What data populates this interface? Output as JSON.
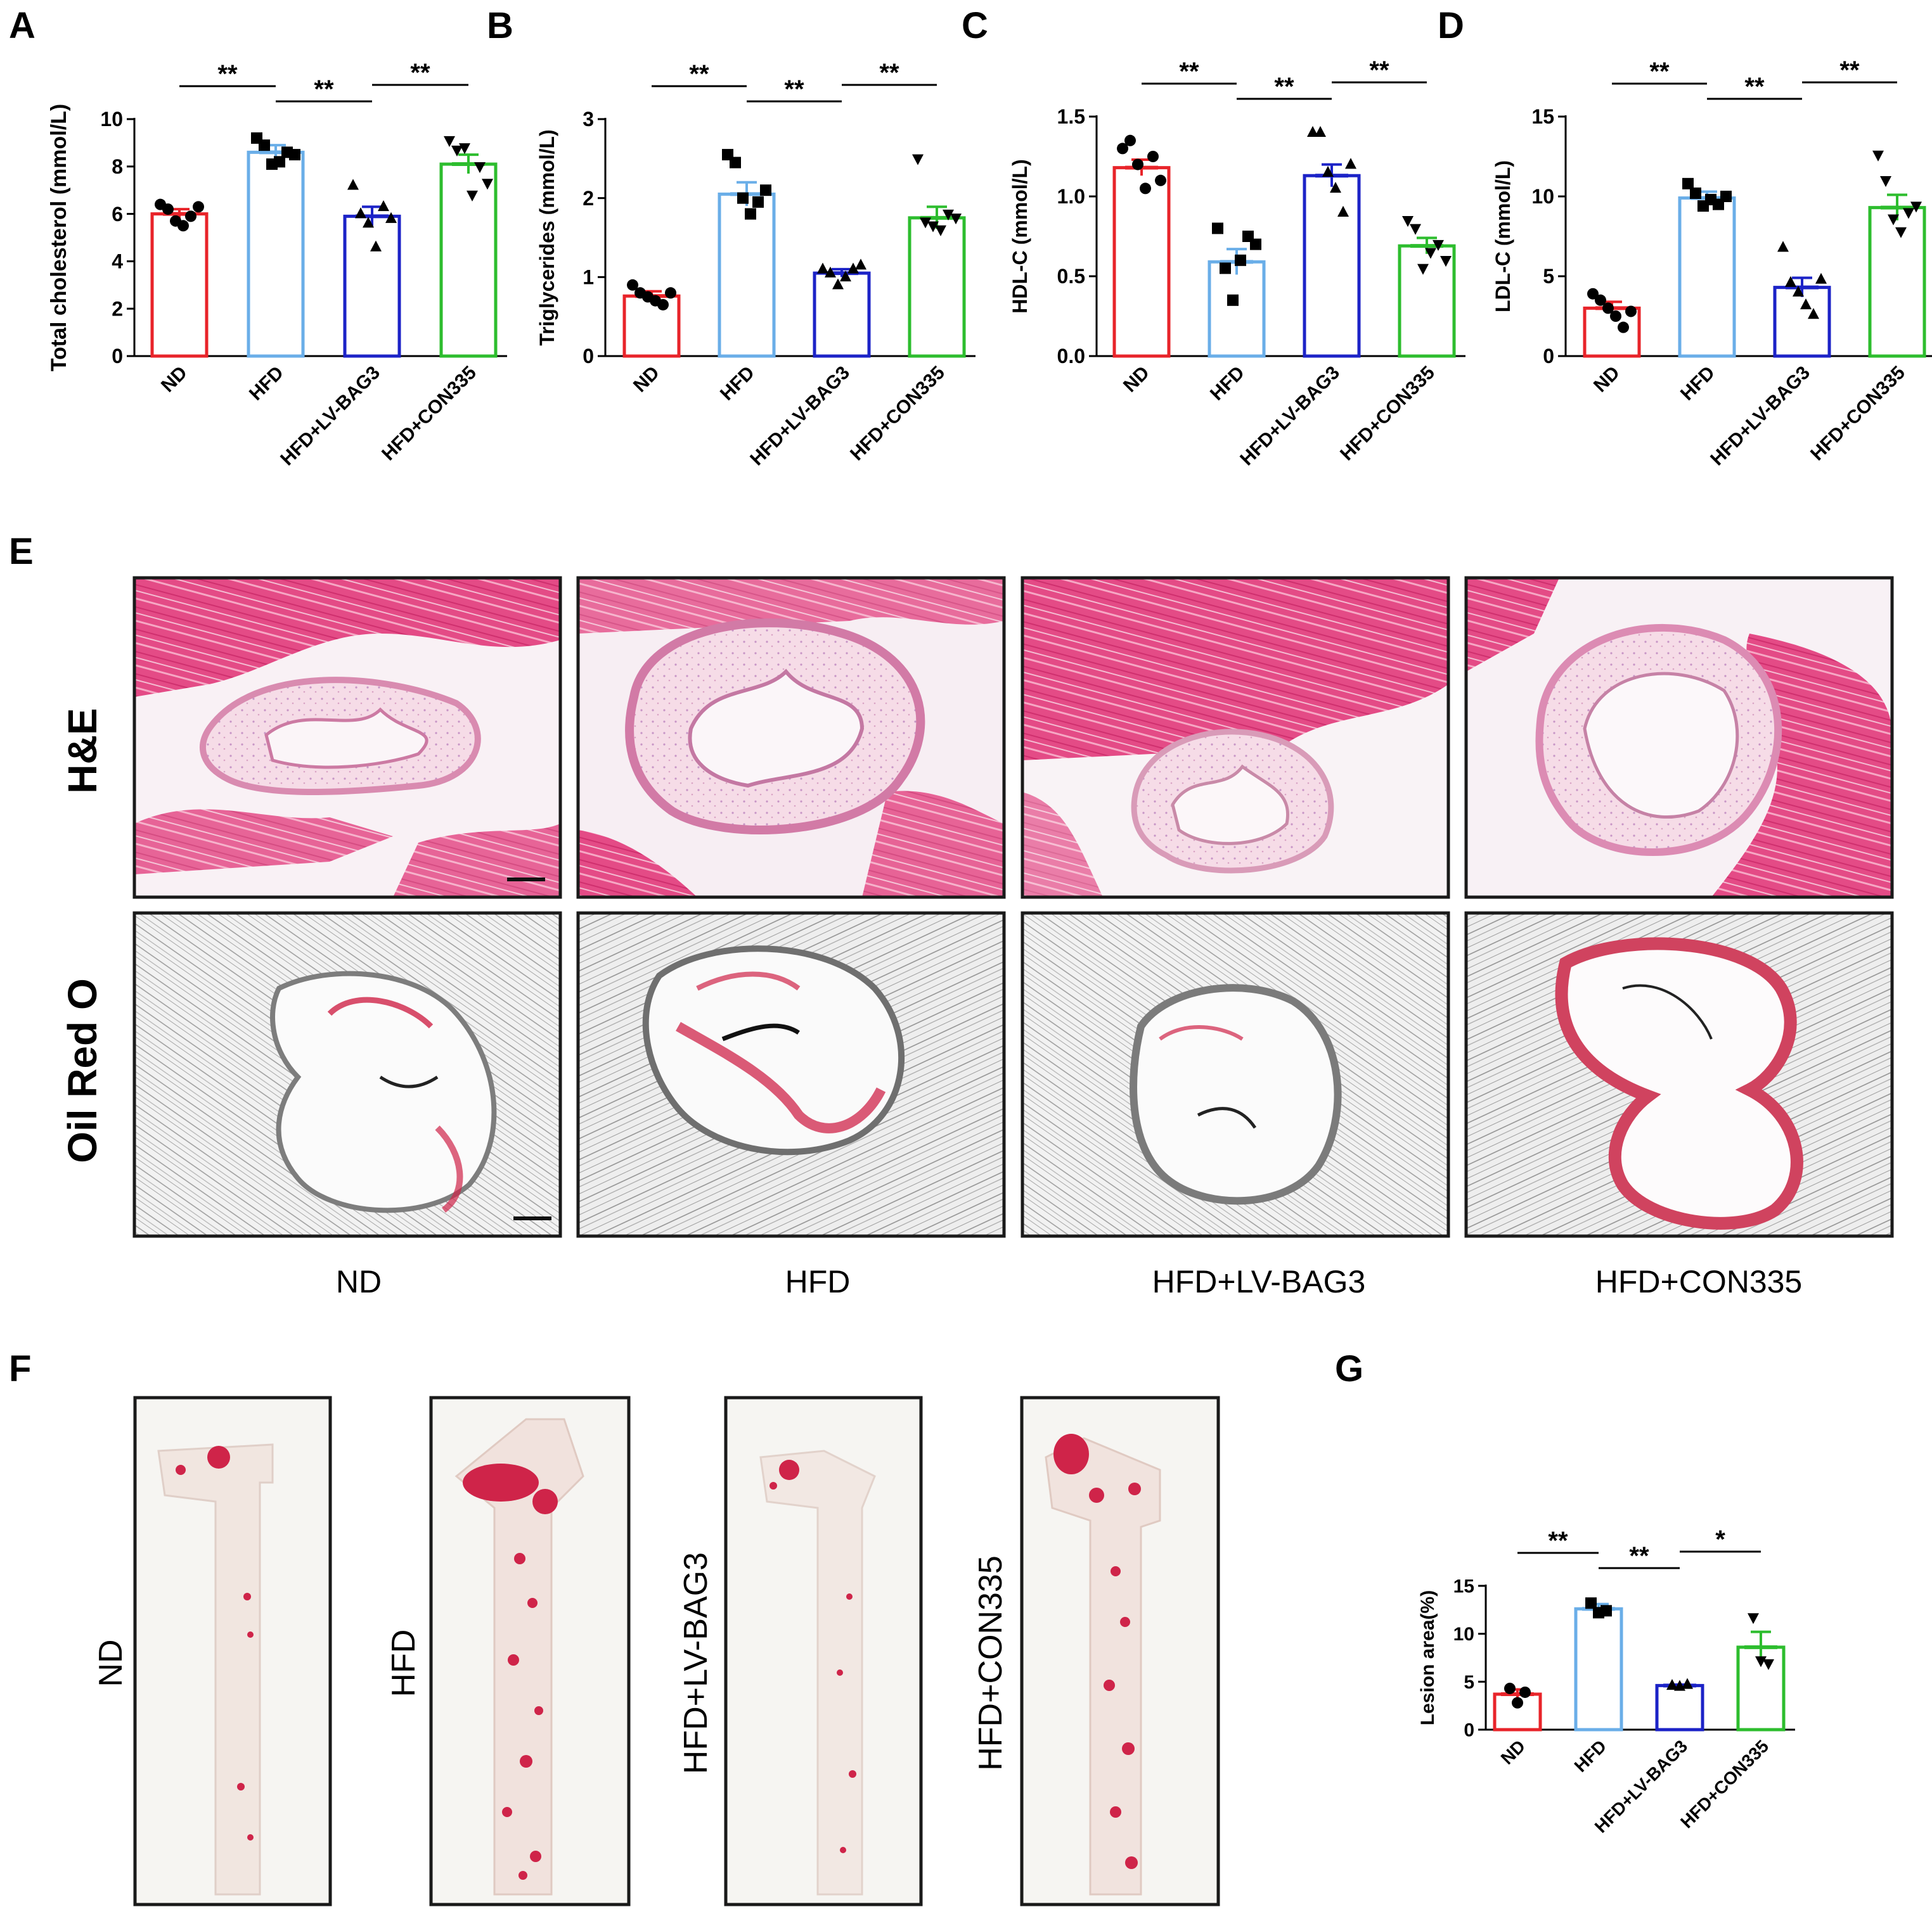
{
  "panels": {
    "A": "A",
    "B": "B",
    "C": "C",
    "D": "D",
    "E": "E",
    "F": "F",
    "G": "G"
  },
  "colors": {
    "ND": "#e8242a",
    "HFD": "#6aaee8",
    "HFD+LV-BAG3": "#1c23c7",
    "HFD+CON335": "#2dbd2e",
    "he_pink": "#e2558b",
    "oil_red": "#cf2449"
  },
  "chart_data": [
    {
      "id": "A",
      "type": "bar",
      "ylabel": "Total cholesterol (mmol/L)",
      "categories": [
        "ND",
        "HFD",
        "HFD+LV-BAG3",
        "HFD+CON335"
      ],
      "values": [
        6.0,
        8.6,
        5.9,
        8.1
      ],
      "errors": [
        0.2,
        0.3,
        0.4,
        0.4
      ],
      "markers": [
        "circle",
        "square",
        "triangle",
        "triangle-down"
      ],
      "points": [
        [
          6.4,
          6.2,
          5.7,
          5.5,
          5.9,
          6.3
        ],
        [
          9.2,
          8.9,
          8.1,
          8.2,
          8.6,
          8.5
        ],
        [
          7.2,
          6.0,
          5.6,
          4.6,
          6.3,
          5.8
        ],
        [
          9.1,
          8.7,
          8.8,
          6.8,
          8.0,
          7.3
        ]
      ],
      "ylim": [
        0,
        10
      ],
      "yticks": [
        "0",
        "2",
        "4",
        "6",
        "8",
        "10"
      ],
      "significance": [
        [
          "ND",
          "HFD",
          "**"
        ],
        [
          "HFD",
          "HFD+LV-BAG3",
          "**"
        ],
        [
          "HFD+LV-BAG3",
          "HFD+CON335",
          "**"
        ]
      ]
    },
    {
      "id": "B",
      "type": "bar",
      "ylabel": "Triglycerides (mmol/L)",
      "categories": [
        "ND",
        "HFD",
        "HFD+LV-BAG3",
        "HFD+CON335"
      ],
      "values": [
        0.76,
        2.05,
        1.05,
        1.75
      ],
      "errors": [
        0.06,
        0.15,
        0.05,
        0.14
      ],
      "markers": [
        "circle",
        "square",
        "triangle",
        "triangle-down"
      ],
      "points": [
        [
          0.9,
          0.8,
          0.75,
          0.7,
          0.65,
          0.8
        ],
        [
          2.55,
          2.45,
          2.0,
          1.8,
          1.95,
          2.1
        ],
        [
          1.1,
          1.05,
          0.9,
          1.0,
          1.1,
          1.15
        ],
        [
          2.5,
          1.7,
          1.65,
          1.6,
          1.8,
          1.75
        ]
      ],
      "ylim": [
        0,
        3
      ],
      "yticks": [
        "0",
        "1",
        "2",
        "3"
      ],
      "significance": [
        [
          "ND",
          "HFD",
          "**"
        ],
        [
          "HFD",
          "HFD+LV-BAG3",
          "**"
        ],
        [
          "HFD+LV-BAG3",
          "HFD+CON335",
          "**"
        ]
      ]
    },
    {
      "id": "C",
      "type": "bar",
      "ylabel": "HDL-C (mmol/L)",
      "categories": [
        "ND",
        "HFD",
        "HFD+LV-BAG3",
        "HFD+CON335"
      ],
      "values": [
        1.18,
        0.59,
        1.13,
        0.69
      ],
      "errors": [
        0.05,
        0.08,
        0.07,
        0.05
      ],
      "markers": [
        "circle",
        "square",
        "triangle",
        "triangle-down"
      ],
      "points": [
        [
          1.3,
          1.35,
          1.2,
          1.05,
          1.25,
          1.1
        ],
        [
          0.8,
          0.55,
          0.35,
          0.6,
          0.75,
          0.7
        ],
        [
          1.4,
          1.4,
          1.15,
          1.05,
          0.9,
          1.2
        ],
        [
          0.85,
          0.8,
          0.55,
          0.65,
          0.7,
          0.6
        ]
      ],
      "ylim": [
        0,
        1.5
      ],
      "yticks": [
        "0.0",
        "0.5",
        "1.0",
        "1.5"
      ],
      "significance": [
        [
          "ND",
          "HFD",
          "**"
        ],
        [
          "HFD",
          "HFD+LV-BAG3",
          "**"
        ],
        [
          "HFD+LV-BAG3",
          "HFD+CON335",
          "**"
        ]
      ]
    },
    {
      "id": "D",
      "type": "bar",
      "ylabel": "LDL-C (mmol/L)",
      "categories": [
        "ND",
        "HFD",
        "HFD+LV-BAG3",
        "HFD+CON335"
      ],
      "values": [
        3.0,
        9.9,
        4.3,
        9.3
      ],
      "errors": [
        0.4,
        0.4,
        0.6,
        0.8
      ],
      "markers": [
        "circle",
        "square",
        "triangle",
        "triangle-down"
      ],
      "points": [
        [
          3.9,
          3.5,
          3.0,
          2.5,
          1.8,
          2.8
        ],
        [
          10.8,
          10.2,
          9.4,
          9.8,
          9.5,
          10.0
        ],
        [
          6.8,
          4.6,
          4.0,
          3.2,
          2.6,
          4.8
        ],
        [
          12.6,
          11.0,
          8.6,
          7.8,
          9.0,
          9.4
        ]
      ],
      "ylim": [
        0,
        15
      ],
      "yticks": [
        "0",
        "5",
        "10",
        "15"
      ],
      "significance": [
        [
          "ND",
          "HFD",
          "**"
        ],
        [
          "HFD",
          "HFD+LV-BAG3",
          "**"
        ],
        [
          "HFD+LV-BAG3",
          "HFD+CON335",
          "**"
        ]
      ]
    },
    {
      "id": "G",
      "type": "bar",
      "ylabel": "Lesion area(%)",
      "categories": [
        "ND",
        "HFD",
        "HFD+LV-BAG3",
        "HFD+CON335"
      ],
      "values": [
        3.7,
        12.6,
        4.6,
        8.6
      ],
      "errors": [
        0.5,
        0.5,
        0.1,
        1.6
      ],
      "markers": [
        "circle",
        "square",
        "triangle",
        "triangle-down"
      ],
      "points": [
        [
          4.3,
          2.8,
          3.9
        ],
        [
          13.2,
          12.2,
          12.4
        ],
        [
          4.6,
          4.5,
          4.7
        ],
        [
          11.7,
          7.2,
          6.9
        ]
      ],
      "ylim": [
        0,
        15
      ],
      "yticks": [
        "0",
        "5",
        "10",
        "15"
      ],
      "significance": [
        [
          "ND",
          "HFD",
          "**"
        ],
        [
          "HFD",
          "HFD+LV-BAG3",
          "**"
        ],
        [
          "HFD+LV-BAG3",
          "HFD+CON335",
          "*"
        ]
      ]
    }
  ],
  "histology": {
    "row_labels": [
      "H&E",
      "Oil Red O"
    ],
    "column_labels": [
      "ND",
      "HFD",
      "HFD+LV-BAG3",
      "HFD+CON335"
    ]
  },
  "aorta": {
    "labels": [
      "ND",
      "HFD",
      "HFD+LV-BAG3",
      "HFD+CON335"
    ]
  }
}
